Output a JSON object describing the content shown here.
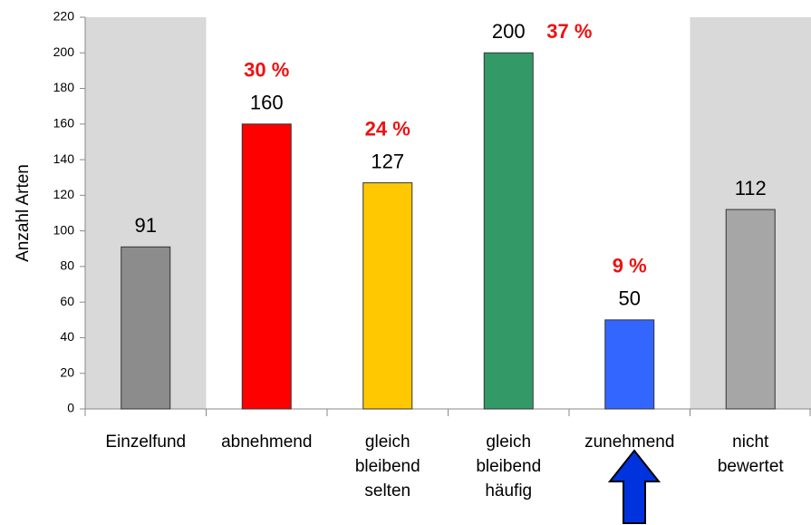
{
  "chart_data": {
    "type": "bar",
    "y_label": "Anzahl Arten",
    "categories": [
      [
        "Einzelfund"
      ],
      [
        "abnehmend"
      ],
      [
        "gleich",
        "bleibend",
        "selten"
      ],
      [
        "gleich",
        "bleibend",
        "häufig"
      ],
      [
        "zunehmend"
      ],
      [
        "nicht",
        "bewertet"
      ]
    ],
    "values": [
      91,
      160,
      127,
      200,
      50,
      112
    ],
    "colors": [
      "#8c8c8c",
      "#ff0000",
      "#ffc800",
      "#339966",
      "#3366ff",
      "#a6a6a6"
    ],
    "background_colors": [
      "#d9d9d9",
      "#ffffff",
      "#ffffff",
      "#ffffff",
      "#ffffff",
      "#d9d9d9"
    ],
    "percent_labels": [
      null,
      "30 %",
      "24 %",
      "37 %",
      "9 %",
      null
    ],
    "ylim": [
      0,
      220
    ],
    "yticks": [
      0,
      20,
      40,
      60,
      80,
      100,
      120,
      140,
      160,
      180,
      200,
      220
    ]
  }
}
